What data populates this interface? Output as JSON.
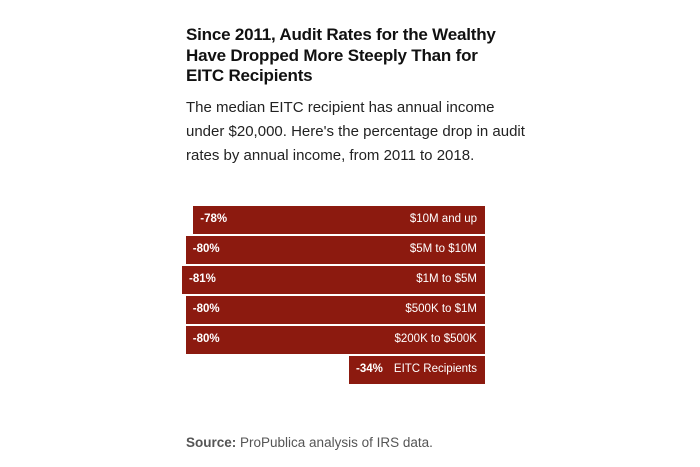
{
  "chart_data": {
    "type": "bar",
    "orientation": "horizontal",
    "title": "Since 2011, Audit Rates for the Wealthy Have Dropped More Steeply Than for EITC Recipients",
    "subtitle": "The median EITC recipient has annual income under $20,000. Here's the percentage drop in audit rates by annual income, from 2011 to 2018.",
    "categories": [
      "$10M and up",
      "$5M to $10M",
      "$1M to $5M",
      "$500K to $1M",
      "$200K to $500K",
      "EITC Recipients"
    ],
    "values": [
      -78,
      -80,
      -81,
      -80,
      -80,
      -34
    ],
    "value_labels": [
      "-78%",
      "-80%",
      "-81%",
      "-80%",
      "-80%",
      "-34%"
    ],
    "xlabel": "",
    "ylabel": "",
    "bar_color": "#8c1a0f",
    "grid": false
  },
  "source": {
    "label": "Source:",
    "text": " ProPublica analysis of IRS data."
  }
}
